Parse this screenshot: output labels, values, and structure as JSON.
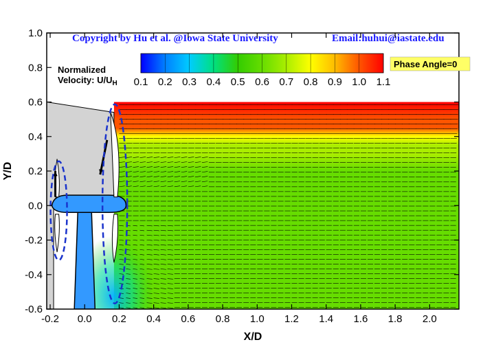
{
  "header": {
    "copyright": "Copyright by Hu et al. @Iowa State University",
    "email": "Email:huhui@iastate.edu"
  },
  "phase_label": "Phase Angle=0",
  "colors": {
    "background": "#ffffff",
    "phase_box": "#ffff66",
    "copyright_text": "#1a1aff",
    "model_gray": "#d3d3d3",
    "nacelle_blue": "#3399ff",
    "annotation_ellipse": "#1a33cc",
    "vector": "#000000"
  },
  "chart_data": {
    "type": "heatmap",
    "title": "",
    "xlabel": "X/D",
    "ylabel": "Y/D",
    "xlim": [
      -0.22,
      2.17
    ],
    "ylim": [
      -0.6,
      1.0
    ],
    "x_ticks": [
      -0.2,
      0.0,
      0.2,
      0.4,
      0.6,
      0.8,
      1.0,
      1.2,
      1.4,
      1.6,
      1.8,
      2.0
    ],
    "x_tick_labels": [
      "-0.2",
      "0.0",
      "0.2",
      "0.4",
      "0.6",
      "0.8",
      "1.0",
      "1.2",
      "1.4",
      "1.6",
      "1.8",
      "2.0"
    ],
    "y_ticks": [
      -0.6,
      -0.4,
      -0.2,
      0.0,
      0.2,
      0.4,
      0.6,
      0.8,
      1.0
    ],
    "y_tick_labels": [
      "-0.6",
      "-0.4",
      "-0.2",
      "0.0",
      "0.2",
      "0.4",
      "0.6",
      "0.8",
      "1.0"
    ],
    "colorbar": {
      "title_line1": "Normalized",
      "title_line2": "Velocity: U/U",
      "title_subscript": "H",
      "min": 0.1,
      "max": 1.1,
      "tick_values": [
        0.1,
        0.2,
        0.3,
        0.4,
        0.5,
        0.6,
        0.7,
        0.8,
        0.9,
        1.0,
        1.1
      ],
      "tick_labels": [
        "0.1",
        "0.2",
        "0.3",
        "0.4",
        "0.5",
        "0.6",
        "0.7",
        "0.8",
        "0.9",
        "1.0",
        "1.1"
      ],
      "colormap": [
        "#0000ff",
        "#0080ff",
        "#00ccff",
        "#00e080",
        "#33cc00",
        "#66dd00",
        "#aaee00",
        "#ffff00",
        "#ffbb00",
        "#ff5500",
        "#ff0000"
      ]
    },
    "field": {
      "x_range": [
        0.29,
        2.17
      ],
      "y_range": [
        -0.6,
        0.6
      ],
      "velocity_profile": [
        {
          "y": 0.6,
          "value": 1.08
        },
        {
          "y": 0.5,
          "value": 1.02
        },
        {
          "y": 0.45,
          "value": 0.95
        },
        {
          "y": 0.4,
          "value": 0.82
        },
        {
          "y": 0.35,
          "value": 0.72
        },
        {
          "y": 0.3,
          "value": 0.66
        },
        {
          "y": 0.2,
          "value": 0.62
        },
        {
          "y": 0.1,
          "value": 0.6
        },
        {
          "y": 0.0,
          "value": 0.6
        },
        {
          "y": -0.2,
          "value": 0.6
        },
        {
          "y": -0.4,
          "value": 0.59
        },
        {
          "y": -0.6,
          "value": 0.58
        }
      ],
      "near_wake_low_region": {
        "x": [
          0.17,
          0.35
        ],
        "y": [
          -0.6,
          -0.1
        ],
        "value": 0.3
      }
    }
  }
}
